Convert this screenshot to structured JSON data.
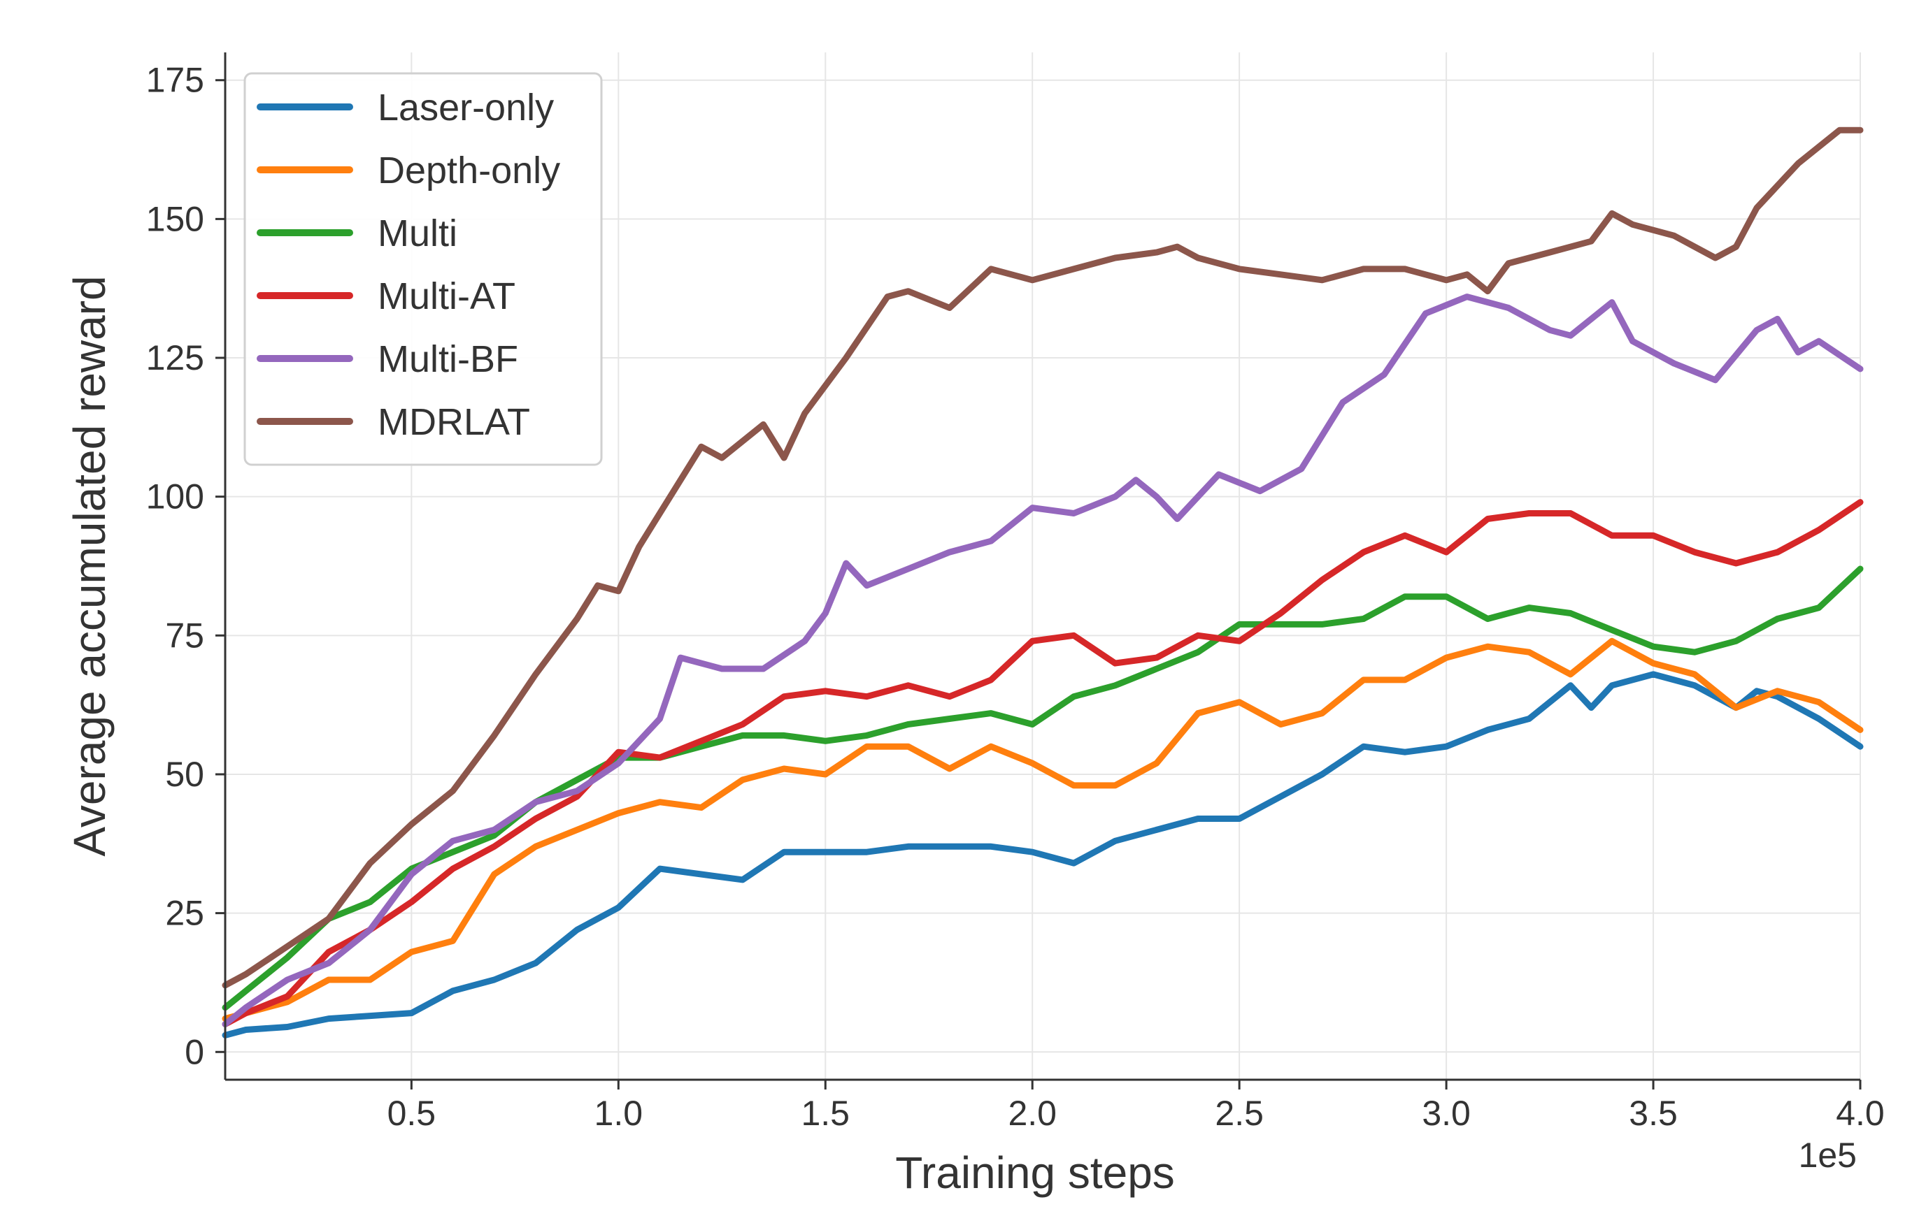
{
  "chart_data": {
    "type": "line",
    "title": "",
    "xlabel": "Training steps",
    "ylabel": "Average accumulated reward",
    "x_offset_label": "1e5",
    "xlim": [
      0.05,
      4.0
    ],
    "ylim": [
      -5,
      180
    ],
    "x_ticks": [
      0.5,
      1.0,
      1.5,
      2.0,
      2.5,
      3.0,
      3.5,
      4.0
    ],
    "x_tick_labels": [
      "0.5",
      "1.0",
      "1.5",
      "2.0",
      "2.5",
      "3.0",
      "3.5",
      "4.0"
    ],
    "y_ticks": [
      0,
      25,
      50,
      75,
      100,
      125,
      150,
      175
    ],
    "y_tick_labels": [
      "0",
      "25",
      "50",
      "75",
      "100",
      "125",
      "150",
      "175"
    ],
    "grid": true,
    "legend_position": "top-left",
    "series": [
      {
        "name": "Laser-only",
        "color": "#1f77b4",
        "points": [
          [
            0.05,
            3
          ],
          [
            0.1,
            4
          ],
          [
            0.2,
            4.5
          ],
          [
            0.3,
            6
          ],
          [
            0.4,
            6.5
          ],
          [
            0.5,
            7
          ],
          [
            0.6,
            11
          ],
          [
            0.7,
            13
          ],
          [
            0.8,
            16
          ],
          [
            0.9,
            22
          ],
          [
            1.0,
            26
          ],
          [
            1.1,
            33
          ],
          [
            1.2,
            32
          ],
          [
            1.3,
            31
          ],
          [
            1.4,
            36
          ],
          [
            1.5,
            36
          ],
          [
            1.6,
            36
          ],
          [
            1.7,
            37
          ],
          [
            1.8,
            37
          ],
          [
            1.9,
            37
          ],
          [
            2.0,
            36
          ],
          [
            2.1,
            34
          ],
          [
            2.2,
            38
          ],
          [
            2.3,
            40
          ],
          [
            2.4,
            42
          ],
          [
            2.5,
            42
          ],
          [
            2.6,
            46
          ],
          [
            2.7,
            50
          ],
          [
            2.8,
            55
          ],
          [
            2.9,
            54
          ],
          [
            3.0,
            55
          ],
          [
            3.1,
            58
          ],
          [
            3.2,
            60
          ],
          [
            3.3,
            66
          ],
          [
            3.35,
            62
          ],
          [
            3.4,
            66
          ],
          [
            3.5,
            68
          ],
          [
            3.6,
            66
          ],
          [
            3.7,
            62
          ],
          [
            3.75,
            65
          ],
          [
            3.8,
            64
          ],
          [
            3.9,
            60
          ],
          [
            4.0,
            55
          ]
        ]
      },
      {
        "name": "Depth-only",
        "color": "#ff7f0e",
        "points": [
          [
            0.05,
            6
          ],
          [
            0.1,
            7
          ],
          [
            0.2,
            9
          ],
          [
            0.3,
            13
          ],
          [
            0.4,
            13
          ],
          [
            0.5,
            18
          ],
          [
            0.6,
            20
          ],
          [
            0.7,
            32
          ],
          [
            0.8,
            37
          ],
          [
            0.9,
            40
          ],
          [
            1.0,
            43
          ],
          [
            1.1,
            45
          ],
          [
            1.2,
            44
          ],
          [
            1.3,
            49
          ],
          [
            1.4,
            51
          ],
          [
            1.5,
            50
          ],
          [
            1.6,
            55
          ],
          [
            1.7,
            55
          ],
          [
            1.8,
            51
          ],
          [
            1.9,
            55
          ],
          [
            2.0,
            52
          ],
          [
            2.1,
            48
          ],
          [
            2.2,
            48
          ],
          [
            2.3,
            52
          ],
          [
            2.4,
            61
          ],
          [
            2.5,
            63
          ],
          [
            2.6,
            59
          ],
          [
            2.7,
            61
          ],
          [
            2.8,
            67
          ],
          [
            2.9,
            67
          ],
          [
            3.0,
            71
          ],
          [
            3.1,
            73
          ],
          [
            3.2,
            72
          ],
          [
            3.3,
            68
          ],
          [
            3.4,
            74
          ],
          [
            3.5,
            70
          ],
          [
            3.6,
            68
          ],
          [
            3.7,
            62
          ],
          [
            3.8,
            65
          ],
          [
            3.9,
            63
          ],
          [
            4.0,
            58
          ]
        ]
      },
      {
        "name": "Multi",
        "color": "#2ca02c",
        "points": [
          [
            0.05,
            8
          ],
          [
            0.1,
            11
          ],
          [
            0.2,
            17
          ],
          [
            0.3,
            24
          ],
          [
            0.4,
            27
          ],
          [
            0.5,
            33
          ],
          [
            0.6,
            36
          ],
          [
            0.7,
            39
          ],
          [
            0.8,
            45
          ],
          [
            0.9,
            49
          ],
          [
            1.0,
            53
          ],
          [
            1.1,
            53
          ],
          [
            1.2,
            55
          ],
          [
            1.3,
            57
          ],
          [
            1.4,
            57
          ],
          [
            1.5,
            56
          ],
          [
            1.6,
            57
          ],
          [
            1.7,
            59
          ],
          [
            1.8,
            60
          ],
          [
            1.9,
            61
          ],
          [
            2.0,
            59
          ],
          [
            2.1,
            64
          ],
          [
            2.2,
            66
          ],
          [
            2.3,
            69
          ],
          [
            2.4,
            72
          ],
          [
            2.5,
            77
          ],
          [
            2.6,
            77
          ],
          [
            2.7,
            77
          ],
          [
            2.8,
            78
          ],
          [
            2.9,
            82
          ],
          [
            3.0,
            82
          ],
          [
            3.1,
            78
          ],
          [
            3.2,
            80
          ],
          [
            3.3,
            79
          ],
          [
            3.4,
            76
          ],
          [
            3.5,
            73
          ],
          [
            3.6,
            72
          ],
          [
            3.7,
            74
          ],
          [
            3.8,
            78
          ],
          [
            3.9,
            80
          ],
          [
            4.0,
            87
          ]
        ]
      },
      {
        "name": "Multi-AT",
        "color": "#d62728",
        "points": [
          [
            0.05,
            5
          ],
          [
            0.1,
            7
          ],
          [
            0.2,
            10
          ],
          [
            0.3,
            18
          ],
          [
            0.4,
            22
          ],
          [
            0.5,
            27
          ],
          [
            0.6,
            33
          ],
          [
            0.7,
            37
          ],
          [
            0.8,
            42
          ],
          [
            0.9,
            46
          ],
          [
            1.0,
            54
          ],
          [
            1.1,
            53
          ],
          [
            1.2,
            56
          ],
          [
            1.3,
            59
          ],
          [
            1.4,
            64
          ],
          [
            1.5,
            65
          ],
          [
            1.6,
            64
          ],
          [
            1.7,
            66
          ],
          [
            1.8,
            64
          ],
          [
            1.9,
            67
          ],
          [
            2.0,
            74
          ],
          [
            2.1,
            75
          ],
          [
            2.2,
            70
          ],
          [
            2.3,
            71
          ],
          [
            2.4,
            75
          ],
          [
            2.5,
            74
          ],
          [
            2.6,
            79
          ],
          [
            2.7,
            85
          ],
          [
            2.8,
            90
          ],
          [
            2.9,
            93
          ],
          [
            3.0,
            90
          ],
          [
            3.1,
            96
          ],
          [
            3.2,
            97
          ],
          [
            3.3,
            97
          ],
          [
            3.4,
            93
          ],
          [
            3.5,
            93
          ],
          [
            3.6,
            90
          ],
          [
            3.7,
            88
          ],
          [
            3.8,
            90
          ],
          [
            3.9,
            94
          ],
          [
            4.0,
            99
          ]
        ]
      },
      {
        "name": "Multi-BF",
        "color": "#9467bd",
        "points": [
          [
            0.05,
            5
          ],
          [
            0.1,
            8
          ],
          [
            0.2,
            13
          ],
          [
            0.3,
            16
          ],
          [
            0.4,
            22
          ],
          [
            0.5,
            32
          ],
          [
            0.6,
            38
          ],
          [
            0.7,
            40
          ],
          [
            0.8,
            45
          ],
          [
            0.9,
            47
          ],
          [
            1.0,
            52
          ],
          [
            1.1,
            60
          ],
          [
            1.15,
            71
          ],
          [
            1.25,
            69
          ],
          [
            1.35,
            69
          ],
          [
            1.45,
            74
          ],
          [
            1.5,
            79
          ],
          [
            1.55,
            88
          ],
          [
            1.6,
            84
          ],
          [
            1.7,
            87
          ],
          [
            1.8,
            90
          ],
          [
            1.9,
            92
          ],
          [
            2.0,
            98
          ],
          [
            2.1,
            97
          ],
          [
            2.2,
            100
          ],
          [
            2.25,
            103
          ],
          [
            2.3,
            100
          ],
          [
            2.35,
            96
          ],
          [
            2.45,
            104
          ],
          [
            2.55,
            101
          ],
          [
            2.65,
            105
          ],
          [
            2.75,
            117
          ],
          [
            2.85,
            122
          ],
          [
            2.95,
            133
          ],
          [
            3.05,
            136
          ],
          [
            3.15,
            134
          ],
          [
            3.25,
            130
          ],
          [
            3.3,
            129
          ],
          [
            3.4,
            135
          ],
          [
            3.45,
            128
          ],
          [
            3.55,
            124
          ],
          [
            3.65,
            121
          ],
          [
            3.75,
            130
          ],
          [
            3.8,
            132
          ],
          [
            3.85,
            126
          ],
          [
            3.9,
            128
          ],
          [
            4.0,
            123
          ]
        ]
      },
      {
        "name": "MDRLAT",
        "color": "#8c564b",
        "points": [
          [
            0.05,
            12
          ],
          [
            0.1,
            14
          ],
          [
            0.2,
            19
          ],
          [
            0.3,
            24
          ],
          [
            0.4,
            34
          ],
          [
            0.5,
            41
          ],
          [
            0.6,
            47
          ],
          [
            0.7,
            57
          ],
          [
            0.8,
            68
          ],
          [
            0.9,
            78
          ],
          [
            0.95,
            84
          ],
          [
            1.0,
            83
          ],
          [
            1.05,
            91
          ],
          [
            1.1,
            97
          ],
          [
            1.2,
            109
          ],
          [
            1.25,
            107
          ],
          [
            1.35,
            113
          ],
          [
            1.4,
            107
          ],
          [
            1.45,
            115
          ],
          [
            1.55,
            125
          ],
          [
            1.65,
            136
          ],
          [
            1.7,
            137
          ],
          [
            1.8,
            134
          ],
          [
            1.9,
            141
          ],
          [
            2.0,
            139
          ],
          [
            2.1,
            141
          ],
          [
            2.2,
            143
          ],
          [
            2.3,
            144
          ],
          [
            2.35,
            145
          ],
          [
            2.4,
            143
          ],
          [
            2.5,
            141
          ],
          [
            2.6,
            140
          ],
          [
            2.7,
            139
          ],
          [
            2.8,
            141
          ],
          [
            2.9,
            141
          ],
          [
            3.0,
            139
          ],
          [
            3.05,
            140
          ],
          [
            3.1,
            137
          ],
          [
            3.15,
            142
          ],
          [
            3.25,
            144
          ],
          [
            3.35,
            146
          ],
          [
            3.4,
            151
          ],
          [
            3.45,
            149
          ],
          [
            3.55,
            147
          ],
          [
            3.65,
            143
          ],
          [
            3.7,
            145
          ],
          [
            3.75,
            152
          ],
          [
            3.85,
            160
          ],
          [
            3.95,
            166
          ],
          [
            4.0,
            166
          ]
        ]
      }
    ]
  }
}
